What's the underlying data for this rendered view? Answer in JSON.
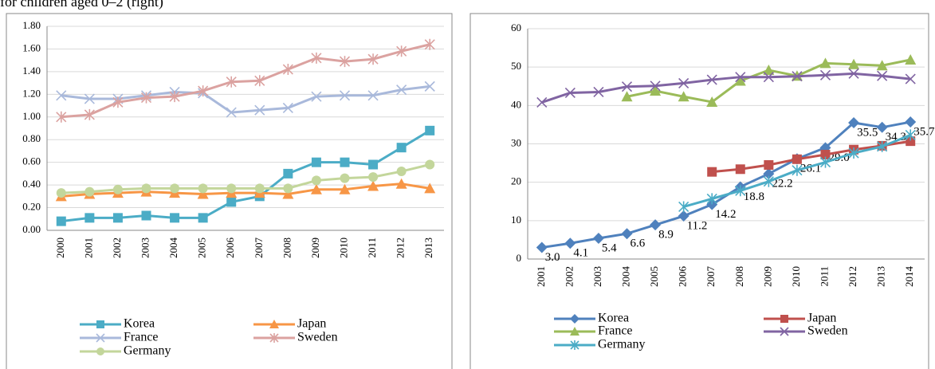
{
  "caption": "for children aged 0–2 (right)",
  "chart_data": [
    {
      "type": "line",
      "categories": [
        "2000",
        "2001",
        "2002",
        "2003",
        "2004",
        "2005",
        "2006",
        "2007",
        "2008",
        "2009",
        "2010",
        "2011",
        "2012",
        "2013"
      ],
      "ylim": [
        0,
        1.8
      ],
      "yticks": [
        {
          "value": 0,
          "label": "0.00"
        },
        {
          "value": 0.2,
          "label": "0.20"
        },
        {
          "value": 0.4,
          "label": "0.40"
        },
        {
          "value": 0.6,
          "label": "0.60"
        },
        {
          "value": 0.8,
          "label": "0.80"
        },
        {
          "value": 1,
          "label": "1.00"
        },
        {
          "value": 1.2,
          "label": "1.20"
        },
        {
          "value": 1.4,
          "label": "1.40"
        },
        {
          "value": 1.6,
          "label": "1.60"
        },
        {
          "value": 1.8,
          "label": "1.80"
        }
      ],
      "grid": true,
      "series": [
        {
          "name": "Korea",
          "color": "#4bacc6",
          "marker": "square",
          "values": [
            0.08,
            0.11,
            0.11,
            0.13,
            0.11,
            0.11,
            0.25,
            0.3,
            0.5,
            0.6,
            0.6,
            0.58,
            0.73,
            0.88
          ]
        },
        {
          "name": "Japan",
          "color": "#f79646",
          "marker": "triangle",
          "values": [
            0.3,
            0.32,
            0.33,
            0.34,
            0.33,
            0.32,
            0.33,
            0.33,
            0.32,
            0.36,
            0.36,
            0.39,
            0.41,
            0.37
          ]
        },
        {
          "name": "France",
          "color": "#a9b9db",
          "marker": "x",
          "values": [
            1.19,
            1.16,
            1.16,
            1.19,
            1.22,
            1.21,
            1.04,
            1.06,
            1.08,
            1.18,
            1.19,
            1.19,
            1.24,
            1.27
          ]
        },
        {
          "name": "Sweden",
          "color": "#dba2a0",
          "marker": "star",
          "values": [
            1.0,
            1.02,
            1.13,
            1.17,
            1.18,
            1.23,
            1.31,
            1.32,
            1.42,
            1.52,
            1.49,
            1.51,
            1.58,
            1.64
          ]
        },
        {
          "name": "Germany",
          "color": "#c3d69b",
          "marker": "circle",
          "values": [
            0.33,
            0.34,
            0.36,
            0.37,
            0.37,
            0.37,
            0.37,
            0.37,
            0.37,
            0.44,
            0.46,
            0.47,
            0.52,
            0.58
          ]
        }
      ]
    },
    {
      "type": "line",
      "categories": [
        "2001",
        "2002",
        "2003",
        "2004",
        "2005",
        "2006",
        "2007",
        "2008",
        "2009",
        "2010",
        "2011",
        "2012",
        "2013",
        "2014"
      ],
      "ylim": [
        0,
        60
      ],
      "yticks": [
        0,
        10,
        20,
        30,
        40,
        50,
        60
      ],
      "grid": true,
      "series": [
        {
          "name": "Korea",
          "color": "#4f81bd",
          "marker": "diamond",
          "values": [
            3.0,
            4.1,
            5.4,
            6.6,
            8.9,
            11.2,
            14.2,
            18.8,
            22.2,
            26.1,
            29.0,
            35.5,
            34.3,
            35.7
          ],
          "value_labels": [
            "3.0",
            "4.1",
            "5.4",
            "6.6",
            "8.9",
            "11.2",
            "14.2",
            "18.8",
            "22.2",
            "26.1",
            "29.0",
            "35.5",
            "34.3",
            "35.7"
          ]
        },
        {
          "name": "Japan",
          "color": "#c0504d",
          "marker": "square",
          "values": [
            null,
            null,
            null,
            null,
            null,
            null,
            22.7,
            23.4,
            24.5,
            26.0,
            27.2,
            28.5,
            29.5,
            30.7
          ]
        },
        {
          "name": "France",
          "color": "#9bbb59",
          "marker": "triangle",
          "values": [
            null,
            null,
            null,
            42.3,
            43.8,
            42.3,
            40.9,
            46.4,
            49.2,
            47.7,
            51.0,
            50.7,
            50.4,
            51.9
          ]
        },
        {
          "name": "Sweden",
          "color": "#8064a2",
          "marker": "x",
          "values": [
            40.8,
            43.3,
            43.5,
            44.9,
            45.1,
            45.8,
            46.7,
            47.4,
            47.4,
            47.6,
            47.9,
            48.3,
            47.7,
            46.9
          ]
        },
        {
          "name": "Germany",
          "color": "#4bacc6",
          "marker": "star",
          "values": [
            null,
            null,
            null,
            null,
            null,
            13.6,
            15.7,
            17.8,
            20.2,
            23.1,
            25.2,
            27.6,
            29.3,
            32.3
          ]
        }
      ]
    }
  ]
}
